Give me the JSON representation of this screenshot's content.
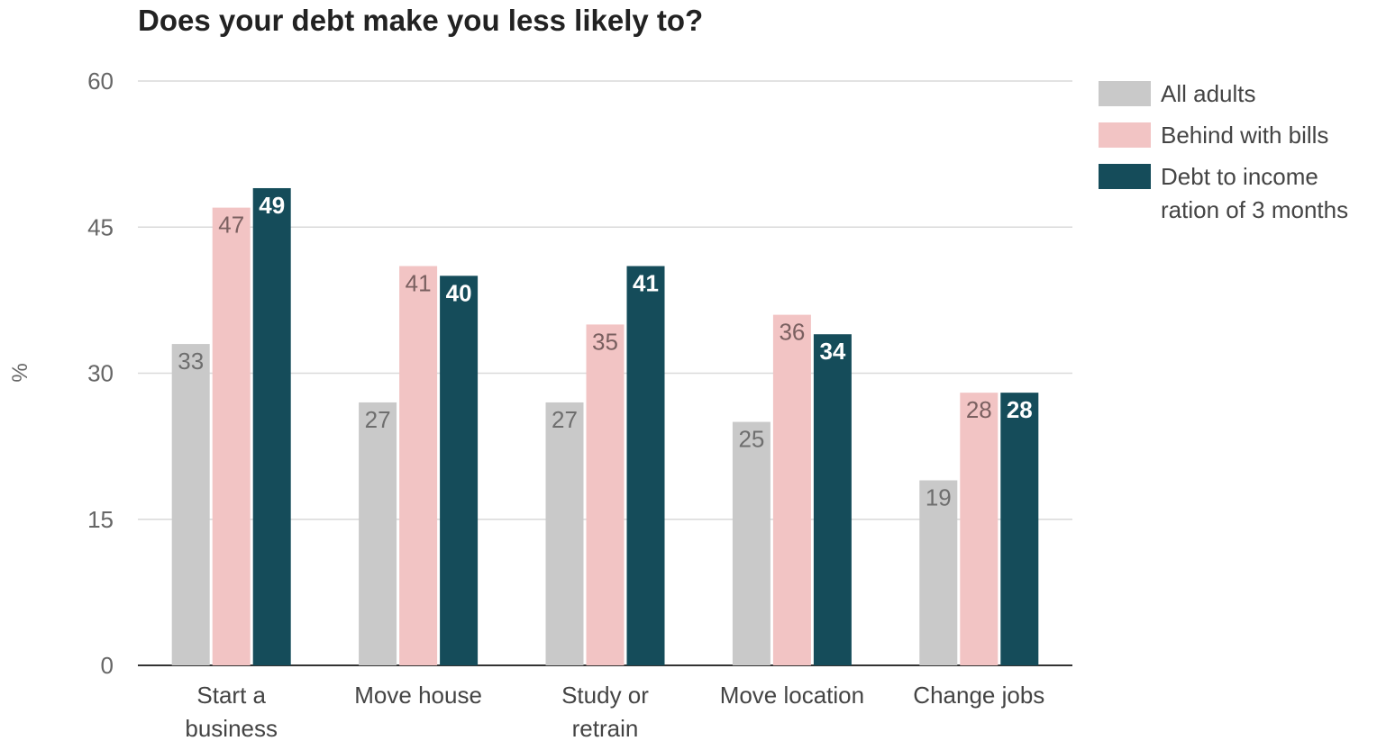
{
  "chart_data": {
    "type": "bar",
    "title": "Does your debt make you less likely to?",
    "ylabel": "%",
    "xlabel": "",
    "ylim": [
      0,
      60
    ],
    "yticks": [
      0,
      15,
      30,
      45,
      60
    ],
    "categories": [
      [
        "Start a",
        "business"
      ],
      [
        "Move house"
      ],
      [
        "Study or",
        "retrain"
      ],
      [
        "Move location"
      ],
      [
        "Change jobs"
      ]
    ],
    "series": [
      {
        "name": "All adults",
        "color": "#c9c9c9",
        "label_color": "#6e6e6e",
        "values": [
          33,
          27,
          27,
          25,
          19
        ]
      },
      {
        "name": "Behind with bills",
        "color": "#f2c4c4",
        "label_color": "#7a6060",
        "values": [
          47,
          41,
          35,
          36,
          28
        ]
      },
      {
        "name": [
          "Debt to income",
          "ration of 3 months"
        ],
        "color": "#154c5a",
        "label_color": "#ffffff",
        "values": [
          49,
          40,
          41,
          34,
          28
        ]
      }
    ],
    "legend_position": "right",
    "grid": true
  }
}
